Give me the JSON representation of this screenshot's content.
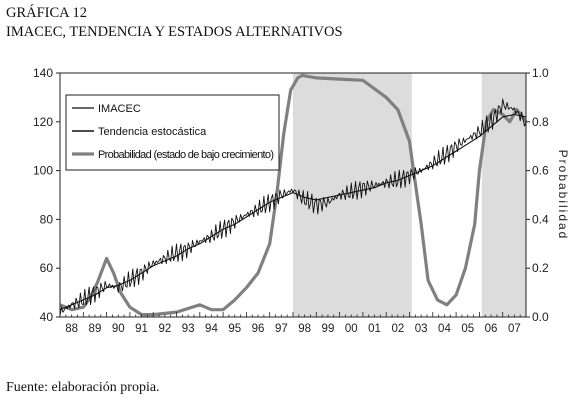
{
  "figure": {
    "title": "GRÁFICA 12",
    "subtitle": "IMACEC, TENDENCIA Y ESTADOS ALTERNATIVOS",
    "source": "Fuente: elaboración propia."
  },
  "chart_data": {
    "type": "line",
    "title": "IMACEC, TENDENCIA Y ESTADOS ALTERNATIVOS",
    "xlabel": "",
    "ylabel": "",
    "y2label": "Probabilidad",
    "x_ticks": [
      "88",
      "89",
      "90",
      "91",
      "92",
      "93",
      "94",
      "95",
      "96",
      "97",
      "98",
      "99",
      "00",
      "01",
      "02",
      "03",
      "04",
      "05",
      "06",
      "07"
    ],
    "x_range": [
      1988.0,
      2008.0
    ],
    "ylim": [
      40,
      140
    ],
    "y_ticks": [
      40,
      60,
      80,
      100,
      120,
      140
    ],
    "y2lim": [
      0.0,
      1.0
    ],
    "y2_ticks": [
      "0.0",
      "0.2",
      "0.4",
      "0.6",
      "0.8",
      "1.0"
    ],
    "grid": false,
    "legend_position": "top-left",
    "shaded_regions": [
      {
        "from": 1998.0,
        "to": 2003.1
      },
      {
        "from": 2006.1,
        "to": 2008.0
      }
    ],
    "series": [
      {
        "name": "IMACEC",
        "axis": "left",
        "style": "thin-noisy",
        "x": [
          1988.0,
          1988.5,
          1989.0,
          1989.5,
          1990.0,
          1990.5,
          1991.0,
          1991.5,
          1992.0,
          1992.5,
          1993.0,
          1993.5,
          1994.0,
          1994.5,
          1995.0,
          1995.5,
          1996.0,
          1996.5,
          1997.0,
          1997.5,
          1998.0,
          1998.5,
          1999.0,
          1999.5,
          2000.0,
          2000.5,
          2001.0,
          2001.5,
          2002.0,
          2002.5,
          2003.0,
          2003.5,
          2004.0,
          2004.5,
          2005.0,
          2005.5,
          2006.0,
          2006.5,
          2007.0,
          2007.5,
          2008.0
        ],
        "values": [
          42,
          45,
          47,
          50,
          53,
          52,
          55,
          58,
          62,
          64,
          66,
          68,
          71,
          73,
          76,
          79,
          82,
          84,
          87,
          90,
          92,
          88,
          86,
          87,
          90,
          91,
          93,
          94,
          95,
          96,
          98,
          100,
          103,
          106,
          110,
          113,
          116,
          120,
          127,
          125,
          120
        ]
      },
      {
        "name": "Tendencia estocástica",
        "axis": "left",
        "style": "thin",
        "x": [
          1988.0,
          1988.5,
          1989.0,
          1989.5,
          1990.0,
          1990.5,
          1991.0,
          1991.5,
          1992.0,
          1992.5,
          1993.0,
          1993.5,
          1994.0,
          1994.5,
          1995.0,
          1995.5,
          1996.0,
          1996.5,
          1997.0,
          1997.5,
          1998.0,
          1998.5,
          1999.0,
          1999.5,
          2000.0,
          2000.5,
          2001.0,
          2001.5,
          2002.0,
          2002.5,
          2003.0,
          2003.5,
          2004.0,
          2004.5,
          2005.0,
          2005.5,
          2006.0,
          2006.5,
          2007.0,
          2007.5,
          2008.0
        ],
        "values": [
          43,
          45,
          47,
          49,
          52,
          53,
          55,
          58,
          61,
          63,
          65,
          68,
          70,
          73,
          76,
          78,
          81,
          84,
          87,
          89,
          91,
          89,
          88,
          89,
          90,
          91,
          92,
          93,
          95,
          96,
          98,
          100,
          102,
          105,
          108,
          111,
          114,
          118,
          122,
          123,
          122
        ]
      },
      {
        "name": "Probabilidad (estado de bajo crecimiento)",
        "axis": "right",
        "style": "thick-gray",
        "x": [
          1988.0,
          1988.5,
          1989.0,
          1989.3,
          1989.6,
          1990.0,
          1990.3,
          1990.6,
          1991.0,
          1991.5,
          1992.0,
          1993.0,
          1994.0,
          1994.5,
          1995.0,
          1995.5,
          1996.0,
          1996.5,
          1997.0,
          1997.3,
          1997.6,
          1997.9,
          1998.2,
          1998.4,
          1998.7,
          1999.0,
          2000.0,
          2001.0,
          2002.0,
          2002.5,
          2003.0,
          2003.2,
          2003.5,
          2003.8,
          2004.2,
          2004.6,
          2005.0,
          2005.4,
          2005.8,
          2006.0,
          2006.3,
          2006.6,
          2007.0,
          2007.3,
          2007.6,
          2008.0
        ],
        "values": [
          0.05,
          0.03,
          0.04,
          0.08,
          0.14,
          0.24,
          0.18,
          0.1,
          0.04,
          0.01,
          0.01,
          0.02,
          0.05,
          0.03,
          0.03,
          0.07,
          0.12,
          0.18,
          0.3,
          0.5,
          0.75,
          0.93,
          0.98,
          0.99,
          0.985,
          0.98,
          0.975,
          0.97,
          0.9,
          0.85,
          0.72,
          0.58,
          0.38,
          0.15,
          0.07,
          0.05,
          0.09,
          0.2,
          0.38,
          0.6,
          0.8,
          0.85,
          0.83,
          0.8,
          0.85,
          0.8
        ]
      }
    ]
  }
}
